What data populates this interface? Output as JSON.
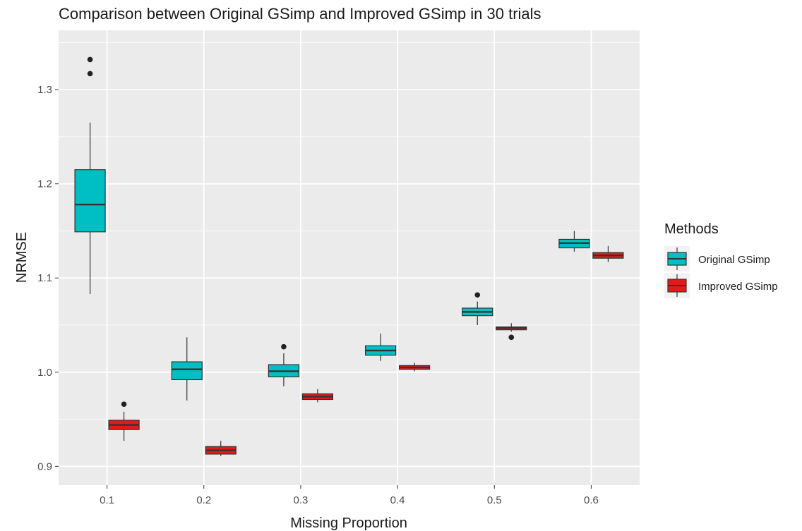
{
  "chart_data": {
    "type": "boxplot",
    "title": "Comparison between Original GSimp and Improved GSimp in 30 trials",
    "xlabel": "Missing Proportion",
    "ylabel": "NRMSE",
    "categories": [
      "0.1",
      "0.2",
      "0.3",
      "0.4",
      "0.5",
      "0.6"
    ],
    "ylim": [
      0.88,
      1.363
    ],
    "yticks": [
      0.9,
      1.0,
      1.1,
      1.2,
      1.3
    ],
    "ytick_labels": [
      "0.9",
      "1.0",
      "1.1",
      "1.2",
      "1.3"
    ],
    "grid": true,
    "legend": {
      "title": "Methods",
      "position": "right"
    },
    "series": [
      {
        "name": "Original GSimp",
        "color": "#00BFC4",
        "boxes": [
          {
            "category": "0.1",
            "lower_whisker": 1.083,
            "q1": 1.149,
            "median": 1.178,
            "q3": 1.215,
            "upper_whisker": 1.265,
            "outliers": [
              1.317,
              1.332
            ]
          },
          {
            "category": "0.2",
            "lower_whisker": 0.97,
            "q1": 0.992,
            "median": 1.003,
            "q3": 1.011,
            "upper_whisker": 1.037,
            "outliers": []
          },
          {
            "category": "0.3",
            "lower_whisker": 0.985,
            "q1": 0.995,
            "median": 1.001,
            "q3": 1.008,
            "upper_whisker": 1.02,
            "outliers": [
              1.027
            ]
          },
          {
            "category": "0.4",
            "lower_whisker": 1.012,
            "q1": 1.018,
            "median": 1.023,
            "q3": 1.028,
            "upper_whisker": 1.041,
            "outliers": []
          },
          {
            "category": "0.5",
            "lower_whisker": 1.05,
            "q1": 1.06,
            "median": 1.064,
            "q3": 1.068,
            "upper_whisker": 1.075,
            "outliers": [
              1.082
            ]
          },
          {
            "category": "0.6",
            "lower_whisker": 1.128,
            "q1": 1.132,
            "median": 1.137,
            "q3": 1.141,
            "upper_whisker": 1.15,
            "outliers": []
          }
        ]
      },
      {
        "name": "Improved GSimp",
        "color": "#E31A1C",
        "boxes": [
          {
            "category": "0.1",
            "lower_whisker": 0.927,
            "q1": 0.939,
            "median": 0.944,
            "q3": 0.949,
            "upper_whisker": 0.958,
            "outliers": [
              0.966
            ]
          },
          {
            "category": "0.2",
            "lower_whisker": 0.911,
            "q1": 0.913,
            "median": 0.917,
            "q3": 0.921,
            "upper_whisker": 0.927,
            "outliers": []
          },
          {
            "category": "0.3",
            "lower_whisker": 0.968,
            "q1": 0.971,
            "median": 0.974,
            "q3": 0.977,
            "upper_whisker": 0.982,
            "outliers": []
          },
          {
            "category": "0.4",
            "lower_whisker": 1.001,
            "q1": 1.003,
            "median": 1.005,
            "q3": 1.007,
            "upper_whisker": 1.01,
            "outliers": []
          },
          {
            "category": "0.5",
            "lower_whisker": 1.043,
            "q1": 1.045,
            "median": 1.047,
            "q3": 1.048,
            "upper_whisker": 1.052,
            "outliers": [
              1.037
            ]
          },
          {
            "category": "0.6",
            "lower_whisker": 1.117,
            "q1": 1.121,
            "median": 1.124,
            "q3": 1.127,
            "upper_whisker": 1.134,
            "outliers": []
          }
        ]
      }
    ]
  }
}
